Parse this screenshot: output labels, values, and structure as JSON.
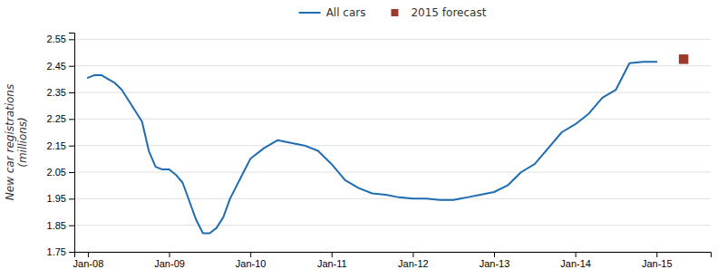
{
  "chart_data": {
    "type": "line",
    "y_label": "New car registrations\n(millions)",
    "ylim": [
      1.75,
      2.575
    ],
    "yticks": [
      1.75,
      1.85,
      1.95,
      2.05,
      2.15,
      2.25,
      2.35,
      2.45,
      2.55
    ],
    "xlim": [
      -2,
      92
    ],
    "xticks": [
      {
        "value": 0,
        "label": "Jan-08"
      },
      {
        "value": 12,
        "label": "Jan-09"
      },
      {
        "value": 24,
        "label": "Jan-10"
      },
      {
        "value": 36,
        "label": "Jan-11"
      },
      {
        "value": 48,
        "label": "Jan-12"
      },
      {
        "value": 60,
        "label": "Jan-13"
      },
      {
        "value": 72,
        "label": "Jan-14"
      },
      {
        "value": 84,
        "label": "Jan-15"
      }
    ],
    "grid": "y",
    "legend": "top",
    "series": [
      {
        "name": "All cars",
        "color": "#1F6CB0",
        "type": "line",
        "x": [
          0,
          1,
          2,
          3,
          4,
          5,
          6,
          7,
          8,
          9,
          10,
          11,
          12,
          13,
          14,
          15,
          16,
          17,
          18,
          19,
          20,
          21,
          22,
          23,
          24,
          26,
          28,
          30,
          32,
          34,
          36,
          38,
          40,
          42,
          44,
          46,
          48,
          50,
          52,
          54,
          56,
          58,
          60,
          62,
          64,
          66,
          68,
          70,
          72,
          74,
          76,
          78,
          80,
          82,
          84
        ],
        "values": [
          2.405,
          2.415,
          2.415,
          2.4,
          2.385,
          2.36,
          2.32,
          2.28,
          2.24,
          2.13,
          2.07,
          2.06,
          2.06,
          2.04,
          2.01,
          1.94,
          1.87,
          1.82,
          1.82,
          1.84,
          1.88,
          1.95,
          2.0,
          2.05,
          2.1,
          2.14,
          2.17,
          2.16,
          2.15,
          2.13,
          2.08,
          2.02,
          1.99,
          1.97,
          1.965,
          1.955,
          1.95,
          1.95,
          1.945,
          1.945,
          1.955,
          1.965,
          1.975,
          2.0,
          2.05,
          2.08,
          2.14,
          2.2,
          2.23,
          2.27,
          2.33,
          2.36,
          2.46,
          2.465,
          2.465
        ]
      },
      {
        "name": "2015 forecast",
        "color": "#9B3A2A",
        "type": "scatter",
        "marker": "square",
        "x": [
          88
        ],
        "values": [
          2.475
        ]
      }
    ]
  }
}
